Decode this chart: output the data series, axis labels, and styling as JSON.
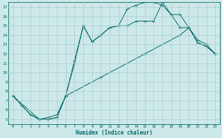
{
  "xlabel": "Humidex (Indice chaleur)",
  "bg_color": "#cce8e8",
  "grid_color": "#a8cccc",
  "line_color": "#006868",
  "xlim": [
    -0.5,
    23.5
  ],
  "ylim": [
    4.5,
    17.5
  ],
  "yticks": [
    5,
    6,
    7,
    8,
    9,
    10,
    11,
    12,
    13,
    14,
    15,
    16,
    17
  ],
  "xticks": [
    0,
    1,
    2,
    3,
    4,
    5,
    6,
    7,
    8,
    9,
    10,
    11,
    12,
    13,
    14,
    15,
    16,
    17,
    18,
    19,
    20,
    21,
    22,
    23
  ],
  "curve1_x": [
    0,
    1,
    2,
    3,
    4,
    5,
    6,
    7,
    8,
    9,
    10,
    11,
    12,
    13,
    14,
    15,
    16,
    17,
    18,
    19,
    20,
    21,
    22,
    23
  ],
  "curve1_y": [
    7.5,
    6.5,
    5.5,
    5.0,
    5.0,
    5.2,
    7.5,
    11.3,
    15.0,
    13.3,
    14.0,
    14.8,
    15.0,
    15.0,
    15.5,
    15.5,
    15.5,
    17.5,
    16.2,
    14.8,
    14.8,
    13.2,
    12.8,
    12.0
  ],
  "curve2_x": [
    0,
    3,
    4,
    5,
    6,
    7,
    8,
    9,
    10,
    11,
    12,
    13,
    14,
    15,
    16,
    17,
    18,
    19,
    20,
    21,
    22,
    23
  ],
  "curve2_y": [
    7.5,
    5.0,
    5.2,
    5.5,
    7.5,
    11.0,
    15.0,
    13.3,
    14.0,
    14.8,
    15.0,
    16.8,
    17.2,
    17.5,
    17.5,
    17.2,
    16.2,
    16.2,
    14.8,
    13.2,
    12.8,
    12.0
  ],
  "curve3_x": [
    0,
    2,
    3,
    4,
    5,
    6,
    10,
    15,
    19,
    20,
    21,
    22,
    23
  ],
  "curve3_y": [
    7.5,
    5.5,
    5.0,
    5.0,
    5.2,
    7.5,
    9.5,
    12.0,
    14.0,
    14.8,
    13.5,
    13.0,
    12.0
  ]
}
